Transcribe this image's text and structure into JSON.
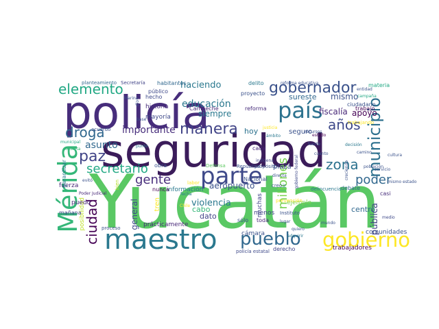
{
  "words": [
    {
      "text": "Yucatán",
      "color": "#5ac864"
    },
    {
      "text": "seguridad",
      "color": "#3b1c5a"
    },
    {
      "text": "policía",
      "color": "#472d7b"
    },
    {
      "text": "maestro",
      "color": "#2a788e"
    },
    {
      "text": "Mérida",
      "color": "#35b779"
    },
    {
      "text": "parte",
      "color": "#3e4989"
    },
    {
      "text": "país",
      "color": "#2c728e"
    },
    {
      "text": "gobierno",
      "color": "#fde725"
    },
    {
      "text": "pueblo",
      "color": "#31688e"
    },
    {
      "text": "municipio",
      "color": "#2d708e"
    },
    {
      "text": "gobernador",
      "color": "#3b528b"
    },
    {
      "text": "elemento",
      "color": "#22a884"
    },
    {
      "text": "manera",
      "color": "#414487"
    },
    {
      "text": "droga",
      "color": "#31688e"
    },
    {
      "text": "paz",
      "color": "#414487"
    },
    {
      "text": "años",
      "color": "#3e4989"
    },
    {
      "text": "zona",
      "color": "#2c728e"
    },
    {
      "text": "poder",
      "color": "#31688e"
    },
    {
      "text": "millones",
      "color": "#7ad151"
    },
    {
      "text": "gente",
      "color": "#472d7b"
    },
    {
      "text": "ciudad",
      "color": "#440154"
    },
    {
      "text": "secretario",
      "color": "#22a884"
    },
    {
      "text": "asunto",
      "color": "#31688e"
    },
    {
      "text": "importante",
      "color": "#472d7b"
    },
    {
      "text": "educación",
      "color": "#2a788e"
    },
    {
      "text": "haciendo",
      "color": "#2a788e"
    },
    {
      "text": "fiscalía",
      "color": "#482878"
    },
    {
      "text": "apoyo",
      "color": "#440154"
    },
    {
      "text": "mismo",
      "color": "#3b528b"
    },
    {
      "text": "sureste",
      "color": "#31688e"
    },
    {
      "text": "siempre",
      "color": "#2a788e"
    },
    {
      "text": "pública",
      "color": "#414487"
    },
    {
      "text": "violencia",
      "color": "#2a788e"
    },
    {
      "text": "aeropuerto",
      "color": "#3b528b"
    },
    {
      "text": "centro",
      "color": "#31688e"
    },
    {
      "text": "plaza",
      "color": "#3b528b"
    },
    {
      "text": "general",
      "color": "#3e4989"
    },
    {
      "text": "hoy",
      "color": "#2c728e"
    },
    {
      "text": "seguro",
      "color": "#3b528b"
    },
    {
      "text": "cabo",
      "color": "#35b779"
    },
    {
      "text": "dato",
      "color": "#414487"
    },
    {
      "text": "tren",
      "color": "#fde725"
    },
    {
      "text": "posibilidad",
      "color": "#bddf26"
    },
    {
      "text": "comunidades",
      "color": "#3b528b"
    },
    {
      "text": "trabajadores",
      "color": "#440154"
    },
    {
      "text": "cámara",
      "color": "#3b528b"
    },
    {
      "text": "menos",
      "color": "#414487"
    },
    {
      "text": "sólo",
      "color": "#3b528b"
    },
    {
      "text": "toda",
      "color": "#482878"
    },
    {
      "text": "muchas",
      "color": "#414487"
    },
    {
      "text": "ejemplo",
      "color": "#7ad151"
    },
    {
      "text": "puedo",
      "color": "#482878"
    },
    {
      "text": "mañana",
      "color": "#414487"
    },
    {
      "text": "fuerza",
      "color": "#482878"
    },
    {
      "text": "garantizar",
      "color": "#2a788e"
    },
    {
      "text": "historia",
      "color": "#472d7b"
    },
    {
      "text": "mayoría",
      "color": "#3e4989"
    },
    {
      "text": "proyecto",
      "color": "#3b528b"
    },
    {
      "text": "reforma",
      "color": "#472d7b"
    },
    {
      "text": "trabajo",
      "color": "#440154"
    },
    {
      "text": "ciudadano",
      "color": "#3b528b"
    },
    {
      "text": "delito",
      "color": "#2a788e"
    },
    {
      "text": "habitantes",
      "color": "#31688e"
    },
    {
      "text": "Secretaría",
      "color": "#414487"
    },
    {
      "text": "planteamiento",
      "color": "#31688e"
    },
    {
      "text": "público",
      "color": "#3e4989"
    },
    {
      "text": "hecho",
      "color": "#3e4989"
    },
    {
      "text": "Campeche",
      "color": "#482878"
    },
    {
      "text": "materia",
      "color": "#22a884"
    },
    {
      "text": "debate",
      "color": "#31688e"
    },
    {
      "text": "casi",
      "color": "#472d7b"
    },
    {
      "text": "proceso",
      "color": "#3b528b"
    },
    {
      "text": "prácticamente",
      "color": "#482878"
    },
    {
      "text": "derecho",
      "color": "#414487"
    },
    {
      "text": "información",
      "color": "#2a788e"
    },
    {
      "text": "nunca",
      "color": "#440154"
    },
    {
      "text": "Nacional",
      "color": "#3b528b"
    },
    {
      "text": "Defensa",
      "color": "#5ec962"
    },
    {
      "text": "cada",
      "color": "#482878"
    },
    {
      "text": "creo",
      "color": "#3b528b"
    },
    {
      "text": "ir",
      "color": "#2a788e"
    },
    {
      "text": "Instituto",
      "color": "#3b528b"
    },
    {
      "text": "acuerdo",
      "color": "#3b528b"
    },
    {
      "text": "labor",
      "color": "#fde725"
    },
    {
      "text": "obra",
      "color": "#3b528b"
    },
    {
      "text": "policía estatal",
      "color": "#3e4989"
    },
    {
      "text": "delincuencia",
      "color": "#2a788e"
    },
    {
      "text": "medio",
      "color": "#3e4989"
    },
    {
      "text": "trabajando",
      "color": "#fde725"
    },
    {
      "text": "propósito",
      "color": "#3b528b"
    },
    {
      "text": "República",
      "color": "#3b528b"
    },
    {
      "text": "indígena",
      "color": "#414487"
    },
    {
      "text": "Marina",
      "color": "#3b528b"
    },
    {
      "text": "dio",
      "color": "#3b528b"
    },
    {
      "text": "bien",
      "color": "#b5de2b"
    },
    {
      "text": "punto",
      "color": "#2a788e"
    },
    {
      "text": "consulta",
      "color": "#35b779"
    },
    {
      "text": "municipal",
      "color": "#22a884"
    },
    {
      "text": "gobierno federal",
      "color": "#3e4989"
    },
    {
      "text": "Poder Judicial",
      "color": "#482878"
    },
    {
      "text": "fecha",
      "color": "#2a788e"
    },
    {
      "text": "lugar",
      "color": "#3b528b"
    },
    {
      "text": "quiero",
      "color": "#3b528b"
    },
    {
      "text": "creciendo",
      "color": "#3b528b"
    },
    {
      "text": "población",
      "color": "#3b528b"
    },
    {
      "text": "campaña",
      "color": "#22a884"
    },
    {
      "text": "reforma educativa",
      "color": "#3b528b"
    },
    {
      "text": "adquirir",
      "color": "#2a788e"
    },
    {
      "text": "directa",
      "color": "#3b528b"
    },
    {
      "text": "base",
      "color": "#3b528b"
    },
    {
      "text": "evitó",
      "color": "#3b528b"
    },
    {
      "text": "justicia",
      "color": "#fde725"
    },
    {
      "text": "ámbito",
      "color": "#2a788e"
    },
    {
      "text": "decisión",
      "color": "#2a788e"
    },
    {
      "text": "prevención",
      "color": "#fde725"
    },
    {
      "text": "Chile",
      "color": "#fde725"
    },
    {
      "text": "camino",
      "color": "#3b528b"
    },
    {
      "text": "estado",
      "color": "#440154"
    },
    {
      "text": "fuerte",
      "color": "#3b528b"
    },
    {
      "text": "cuanto",
      "color": "#3b528b"
    },
    {
      "text": "mismo estado",
      "color": "#3b528b"
    },
    {
      "text": "cultura",
      "color": "#3b528b"
    },
    {
      "text": "mundo",
      "color": "#3b528b"
    },
    {
      "text": "recursos",
      "color": "#3b528b"
    },
    {
      "text": "entidad",
      "color": "#3b528b"
    },
    {
      "text": "servicio",
      "color": "#3b528b"
    },
    {
      "text": "inversión",
      "color": "#3b528b"
    }
  ]
}
